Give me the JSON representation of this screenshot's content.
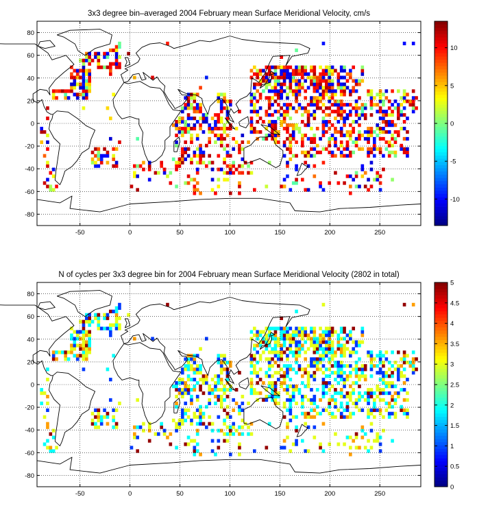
{
  "chart_data": [
    {
      "type": "heatmap",
      "title": "3x3 degree bin–averaged 2004 February mean Surface Meridional Velocity, cm/s",
      "xlabel": "",
      "ylabel": "",
      "xlim": [
        -93,
        291
      ],
      "ylim": [
        -90,
        90
      ],
      "x_ticks": [
        -50,
        0,
        50,
        100,
        150,
        200,
        250
      ],
      "y_ticks": [
        -80,
        -60,
        -40,
        -20,
        0,
        20,
        40,
        60,
        80
      ],
      "grid": true,
      "colorbar": {
        "min": -13.5,
        "max": 13.5,
        "ticks": [
          -10,
          -5,
          0,
          5,
          10
        ],
        "colormap": "jet"
      },
      "bin_size_deg": 3,
      "regions": [
        {
          "lon": [
            -80,
            -40
          ],
          "lat": [
            20,
            46
          ],
          "p": 0.75
        },
        {
          "lon": [
            -50,
            -10
          ],
          "lat": [
            46,
            66
          ],
          "p": 0.45
        },
        {
          "lon": [
            -40,
            -15
          ],
          "lat": [
            -40,
            -22
          ],
          "p": 0.5
        },
        {
          "lon": [
            -85,
            -75
          ],
          "lat": [
            -60,
            -30
          ],
          "p": 0.35
        },
        {
          "lon": [
            40,
            100
          ],
          "lat": [
            -10,
            25
          ],
          "p": 0.55
        },
        {
          "lon": [
            45,
            120
          ],
          "lat": [
            -45,
            -10
          ],
          "p": 0.35
        },
        {
          "lon": [
            50,
            110
          ],
          "lat": [
            -65,
            -45
          ],
          "p": 0.25
        },
        {
          "lon": [
            120,
            290
          ],
          "lat": [
            -30,
            50
          ],
          "p": 0.45
        },
        {
          "lon": [
            140,
            215
          ],
          "lat": [
            25,
            50
          ],
          "p": 0.7
        },
        {
          "lon": [
            0,
            40
          ],
          "lat": [
            -50,
            -35
          ],
          "p": 0.35
        },
        {
          "lon": [
            -92,
            -70
          ],
          "lat": [
            -30,
            5
          ],
          "p": 0.3
        },
        {
          "lon": [
            150,
            250
          ],
          "lat": [
            -60,
            -35
          ],
          "p": 0.15
        }
      ]
    },
    {
      "type": "heatmap",
      "title": "N of cycles per 3x3 degree bin for 2004 February mean Surface Meridional Velocity (2802 in total)",
      "xlabel": "",
      "ylabel": "",
      "xlim": [
        -93,
        291
      ],
      "ylim": [
        -90,
        90
      ],
      "x_ticks": [
        -50,
        0,
        50,
        100,
        150,
        200,
        250
      ],
      "y_ticks": [
        -80,
        -60,
        -40,
        -20,
        0,
        20,
        40,
        60,
        80
      ],
      "grid": true,
      "colorbar": {
        "min": 0,
        "max": 5,
        "ticks": [
          0,
          0.5,
          1,
          1.5,
          2,
          2.5,
          3,
          3.5,
          4,
          4.5,
          5
        ],
        "colormap": "jet"
      },
      "bin_size_deg": 3,
      "total_cycles": 2802
    }
  ]
}
